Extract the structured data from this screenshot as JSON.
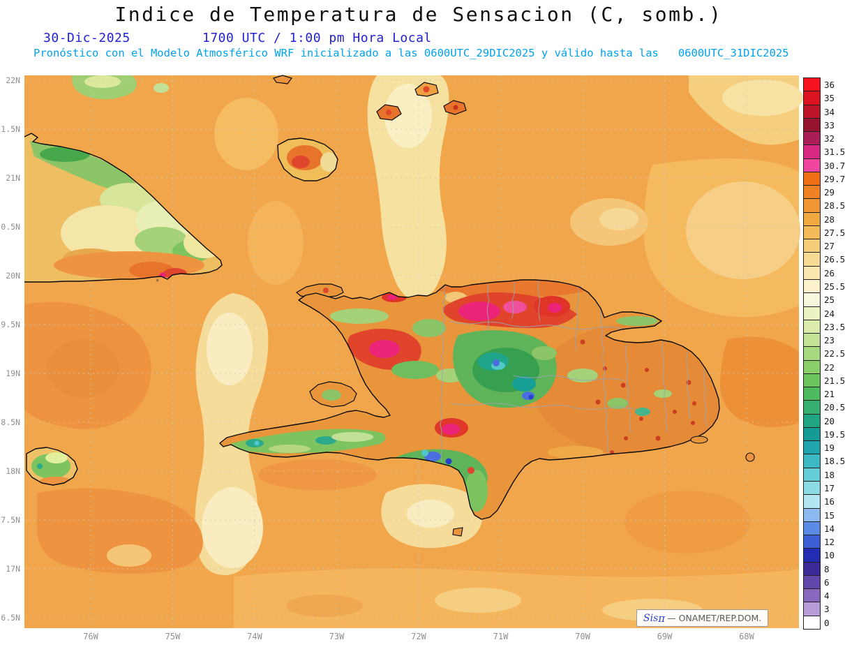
{
  "header": {
    "title": "Indice de Temperatura de Sensacion (C, somb.)",
    "date": "30-Dic-2025",
    "local_time": "1700 UTC / 1:00 pm Hora Local",
    "forecast": "Pronóstico con el Modelo Atmosférico WRF inicializado a las 0600UTC_29DIC2025 y válido hasta las   0600UTC_31DIC2025"
  },
  "axes": {
    "lat_labels": [
      "22N",
      "1.5N",
      "21N",
      "0.5N",
      "20N",
      "9.5N",
      "19N",
      "8.5N",
      "18N",
      "7.5N",
      "17N",
      "6.5N"
    ],
    "lon_labels": [
      "76W",
      "75W",
      "74W",
      "73W",
      "72W",
      "71W",
      "70W",
      "69W",
      "68W"
    ]
  },
  "colorbar": {
    "unit": "C",
    "entries": [
      {
        "value": "36",
        "color": "#F5121E"
      },
      {
        "value": "35",
        "color": "#DC1420"
      },
      {
        "value": "34",
        "color": "#BE1428"
      },
      {
        "value": "33",
        "color": "#961430"
      },
      {
        "value": "32",
        "color": "#AA1E55"
      },
      {
        "value": "31.5",
        "color": "#D72882"
      },
      {
        "value": "30.7",
        "color": "#F046A0"
      },
      {
        "value": "29.7",
        "color": "#F06E14"
      },
      {
        "value": "29",
        "color": "#F08223"
      },
      {
        "value": "28.5",
        "color": "#F09632"
      },
      {
        "value": "28",
        "color": "#F2A841"
      },
      {
        "value": "27.5",
        "color": "#F4BA5A"
      },
      {
        "value": "27",
        "color": "#F5CB78"
      },
      {
        "value": "26.5",
        "color": "#F7DA94"
      },
      {
        "value": "26",
        "color": "#F9E7B0"
      },
      {
        "value": "25.5",
        "color": "#FBF1CB"
      },
      {
        "value": "25",
        "color": "#F8F6DC"
      },
      {
        "value": "24",
        "color": "#ECF2C3"
      },
      {
        "value": "23.5",
        "color": "#DAEBAB"
      },
      {
        "value": "23",
        "color": "#C2E295"
      },
      {
        "value": "22.5",
        "color": "#A6D87E"
      },
      {
        "value": "22",
        "color": "#8ACE6A"
      },
      {
        "value": "21.5",
        "color": "#6CC45E"
      },
      {
        "value": "21",
        "color": "#4EBA5E"
      },
      {
        "value": "20.5",
        "color": "#35B06E"
      },
      {
        "value": "20",
        "color": "#1FA582"
      },
      {
        "value": "19.5",
        "color": "#159B96"
      },
      {
        "value": "19",
        "color": "#1FA5AF"
      },
      {
        "value": "18.5",
        "color": "#3CB9C3"
      },
      {
        "value": "18",
        "color": "#64CDD7"
      },
      {
        "value": "17",
        "color": "#8CDCE6"
      },
      {
        "value": "16",
        "color": "#B4E6F0"
      },
      {
        "value": "15",
        "color": "#8CB9F0"
      },
      {
        "value": "14",
        "color": "#5A8CE6"
      },
      {
        "value": "12",
        "color": "#3C5FD7"
      },
      {
        "value": "10",
        "color": "#232DB4"
      },
      {
        "value": "8",
        "color": "#3C2896"
      },
      {
        "value": "6",
        "color": "#5F46AA"
      },
      {
        "value": "4",
        "color": "#8768BE"
      },
      {
        "value": "3",
        "color": "#B99BD7"
      },
      {
        "value": "0",
        "color": "#FFFFFF"
      }
    ]
  },
  "watermark": {
    "brand": "Sis",
    "pi": "π",
    "rest": "— ONAMET/REP.DOM."
  },
  "map_marker": "✳"
}
